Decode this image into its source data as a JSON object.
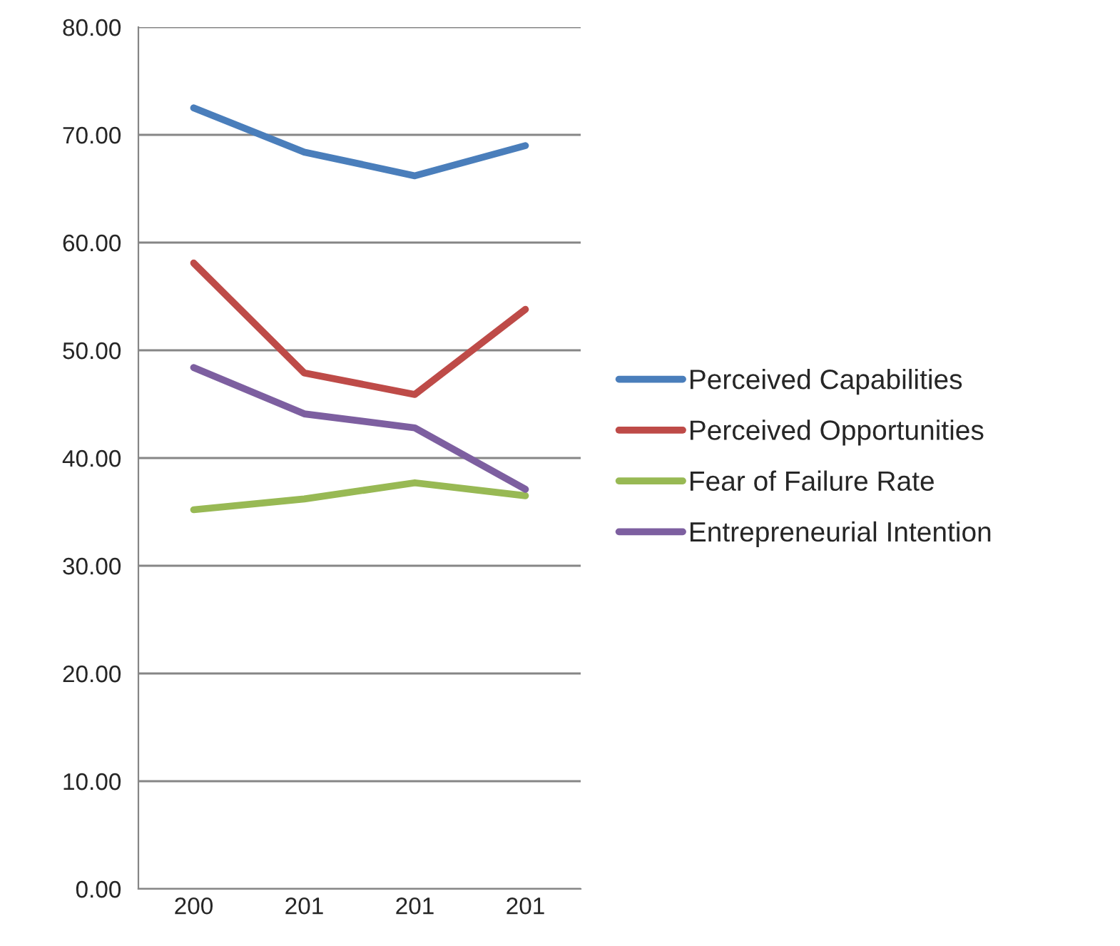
{
  "chart_data": {
    "type": "line",
    "categories": [
      "200",
      "201",
      "201",
      "201"
    ],
    "series": [
      {
        "name": "Perceived Capabilities",
        "color": "#4a7ebb",
        "values": [
          72.5,
          68.4,
          66.2,
          69.0
        ]
      },
      {
        "name": "Perceived Opportunities",
        "color": "#be4b48",
        "values": [
          58.1,
          47.9,
          45.9,
          53.8
        ]
      },
      {
        "name": "Fear of Failure Rate",
        "color": "#98b954",
        "values": [
          35.2,
          36.2,
          37.7,
          36.5
        ]
      },
      {
        "name": "Entrepreneurial Intention",
        "color": "#7d5fa0",
        "values": [
          48.4,
          44.1,
          42.8,
          37.1
        ]
      }
    ],
    "ylim": [
      0,
      80
    ],
    "yticks": [
      {
        "value": 0,
        "label": "0.00"
      },
      {
        "value": 10,
        "label": "10.00"
      },
      {
        "value": 20,
        "label": "20.00"
      },
      {
        "value": 30,
        "label": "30.00"
      },
      {
        "value": 40,
        "label": "40.00"
      },
      {
        "value": 50,
        "label": "50.00"
      },
      {
        "value": 60,
        "label": "60.00"
      },
      {
        "value": 70,
        "label": "70.00"
      },
      {
        "value": 80,
        "label": "80.00"
      }
    ],
    "grid": "y",
    "legend": "right",
    "marker": "none",
    "line_style": "solid"
  }
}
